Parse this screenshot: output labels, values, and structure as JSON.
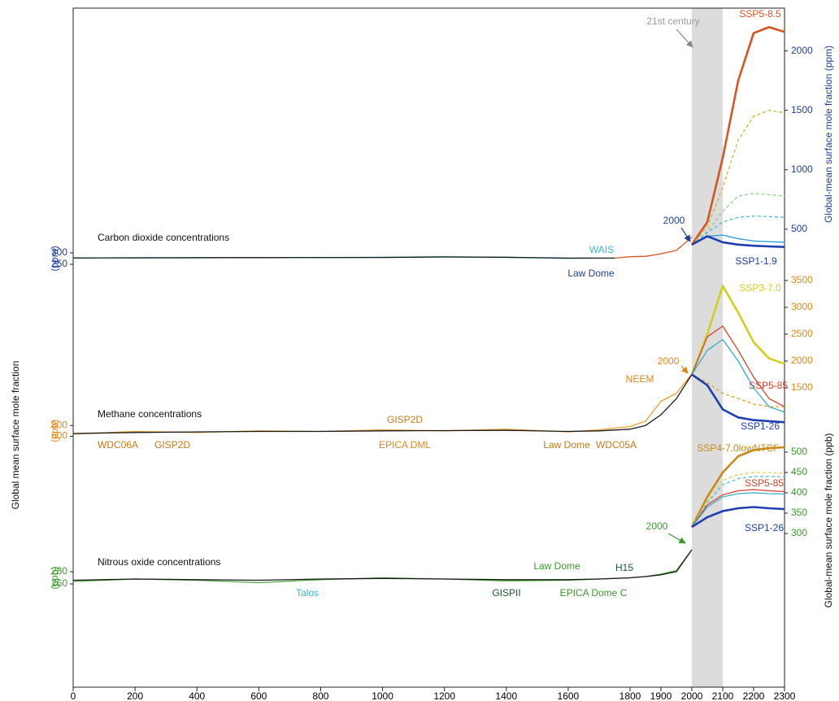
{
  "chart_data": [
    {
      "type": "line",
      "title": "Carbon dioxide concentrations",
      "yunit": "(ppm)",
      "y2label": "Global-mean surface mole fraction (ppm)",
      "axis_color": "#1f3f99",
      "ylim": [
        232,
        1375
      ],
      "yticks": [
        250,
        300
      ],
      "y2lim": [
        170,
        2360
      ],
      "y2ticks": [
        500,
        1000,
        1500,
        2000
      ],
      "highlight": {
        "range": [
          2000,
          2100
        ],
        "label": "21st century",
        "color": "#dcdcdc"
      },
      "annotations": [
        {
          "text": "WAIS",
          "color": "#35b8d6"
        },
        {
          "text": "Law Dome",
          "color": "#1f3f99"
        },
        {
          "text": "2000",
          "color": "#1f3f99"
        }
      ],
      "series": [
        {
          "color": "#35b8d6",
          "x": [
            0,
            200,
            400,
            600,
            800,
            1000,
            1200,
            1400,
            1600,
            1700
          ],
          "values": [
            277,
            279,
            278,
            280,
            279,
            281,
            283,
            280,
            276,
            277
          ]
        },
        {
          "color": "#1a1a1a",
          "x": [
            0,
            200,
            400,
            600,
            800,
            1000,
            1200,
            1400,
            1600,
            1750
          ],
          "values": [
            278,
            278,
            279,
            279,
            280,
            280,
            282,
            281,
            277,
            277
          ]
        },
        {
          "color": "#d9531e",
          "x": [
            1750,
            1800,
            1850,
            1900,
            1950,
            2000
          ],
          "values": [
            277,
            283,
            285,
            296,
            311,
            369
          ]
        },
        {
          "name": "SSP5-8.5",
          "color": "#d9531e",
          "bold": true,
          "axis": "y2",
          "x": [
            2000,
            2050,
            2100,
            2150,
            2200,
            2250,
            2300
          ],
          "values": [
            369,
            560,
            1100,
            1750,
            2150,
            2200,
            2160
          ]
        },
        {
          "color": "#c9b531",
          "dash": true,
          "axis": "y2",
          "x": [
            2000,
            2050,
            2100,
            2150,
            2200,
            2250,
            2300
          ],
          "values": [
            369,
            520,
            850,
            1250,
            1450,
            1500,
            1480
          ]
        },
        {
          "color": "#8fcf8f",
          "dash": true,
          "axis": "y2",
          "x": [
            2000,
            2050,
            2100,
            2150,
            2200,
            2250,
            2300
          ],
          "values": [
            369,
            480,
            650,
            780,
            800,
            790,
            780
          ]
        },
        {
          "color": "#4fb9d3",
          "dash": true,
          "axis": "y2",
          "x": [
            2000,
            2050,
            2100,
            2150,
            2200,
            2250,
            2300
          ],
          "values": [
            369,
            470,
            560,
            600,
            610,
            605,
            600
          ]
        },
        {
          "color": "#1f9ad6",
          "axis": "y2",
          "x": [
            2000,
            2050,
            2100,
            2150,
            2200,
            2250,
            2300
          ],
          "values": [
            369,
            440,
            450,
            420,
            400,
            395,
            390
          ]
        },
        {
          "name": "SSP1-1.9",
          "color": "#1d3fb0",
          "bold": true,
          "axis": "y2",
          "x": [
            2000,
            2050,
            2100,
            2150,
            2200,
            2250,
            2300
          ],
          "values": [
            369,
            440,
            390,
            370,
            360,
            355,
            350
          ]
        }
      ]
    },
    {
      "type": "line",
      "title": "Methane concentrations",
      "yunit": "(ppb)",
      "ylabel": "Global mean surface mole fraction",
      "axis_color": "#e0881a",
      "ylim": [
        470,
        3650
      ],
      "yticks": [
        600,
        800
      ],
      "y2lim": [
        470,
        3650
      ],
      "y2ticks": [
        1500,
        2000,
        2500,
        3000,
        3500
      ],
      "annotations": [
        {
          "text": "2000",
          "color": "#e0881a"
        },
        {
          "text": "NEEM",
          "color": "#e0881a"
        },
        {
          "text": "GISP2D",
          "color": "#c87a18"
        },
        {
          "text": "WDC06A",
          "color": "#c87a18"
        },
        {
          "text": "GISP2D",
          "color": "#c87a18"
        },
        {
          "text": "EPICA DML",
          "color": "#e0881a"
        },
        {
          "text": "Law Dome",
          "color": "#c87a18"
        },
        {
          "text": "WDC05A",
          "color": "#c87a18"
        }
      ],
      "series": [
        {
          "color": "#e8a030",
          "x": [
            0,
            200,
            400,
            600,
            800,
            1000,
            1200,
            1400,
            1600,
            1700,
            1800,
            1850,
            1900,
            1950,
            2000
          ],
          "values": [
            640,
            690,
            670,
            700,
            690,
            720,
            700,
            730,
            680,
            720,
            780,
            880,
            1250,
            1400,
            1760
          ]
        },
        {
          "color": "#1a1a1a",
          "x": [
            0,
            200,
            400,
            600,
            800,
            1000,
            1200,
            1400,
            1600,
            1700,
            1800,
            1850,
            1900,
            1950,
            2000
          ],
          "values": [
            650,
            670,
            680,
            690,
            690,
            700,
            705,
            710,
            690,
            700,
            730,
            800,
            1000,
            1300,
            1750
          ]
        },
        {
          "name": "SSP3-7.0",
          "color": "#cfcf1e",
          "bold": true,
          "axis": "y2",
          "x": [
            2000,
            2050,
            2100,
            2150,
            2200,
            2250,
            2300
          ],
          "values": [
            1750,
            2500,
            3400,
            2900,
            2350,
            2050,
            1950
          ]
        },
        {
          "name": "SSP5-85",
          "color": "#d9402a",
          "axis": "y2",
          "x": [
            2000,
            2050,
            2100,
            2150,
            2200,
            2250,
            2300
          ],
          "values": [
            1750,
            2450,
            2650,
            2200,
            1700,
            1300,
            1150
          ]
        },
        {
          "color": "#2fb0c8",
          "axis": "y2",
          "x": [
            2000,
            2050,
            2100,
            2150,
            2200,
            2250,
            2300
          ],
          "values": [
            1750,
            2200,
            2400,
            2000,
            1500,
            1150,
            1050
          ]
        },
        {
          "color": "#e0a030",
          "dash": true,
          "axis": "y2",
          "x": [
            2000,
            2050,
            2100,
            2150,
            2200,
            2250,
            2300
          ],
          "values": [
            1750,
            1600,
            1400,
            1300,
            1200,
            1150,
            1150
          ]
        },
        {
          "name": "SSP1-26",
          "color": "#1d3fb0",
          "bold": true,
          "axis": "y2",
          "x": [
            2000,
            2050,
            2100,
            2150,
            2200,
            2250,
            2300
          ],
          "values": [
            1750,
            1550,
            1100,
            950,
            900,
            880,
            860
          ]
        }
      ]
    },
    {
      "type": "line",
      "title": "Nitrous oxide concentrations",
      "yunit": "(ppb)",
      "y2label": "Global-mean surface mole fraction (ppb)",
      "axis_color": "#3a9a2a",
      "ylim": [
        204,
        484
      ],
      "yticks": [
        260,
        280
      ],
      "y2lim": [
        92,
        512
      ],
      "y2ticks": [
        300,
        350,
        400,
        450,
        500
      ],
      "xlim": [
        0,
        2300
      ],
      "xticks": [
        0,
        200,
        400,
        600,
        800,
        1000,
        1200,
        1400,
        1600,
        1800,
        1900,
        2000,
        2100,
        2200,
        2300
      ],
      "annotations": [
        {
          "text": "2000",
          "color": "#3a9a2a"
        },
        {
          "text": "Law Dome",
          "color": "#3a9a2a"
        },
        {
          "text": "H15",
          "color": "#1a5a2a"
        },
        {
          "text": "Talos",
          "color": "#35b8d6"
        },
        {
          "text": "GISPII",
          "color": "#1a5a2a"
        },
        {
          "text": "EPICA Dome C",
          "color": "#3a9a2a"
        }
      ],
      "series": [
        {
          "color": "#4aa83a",
          "x": [
            0,
            200,
            400,
            600,
            800,
            1000,
            1200,
            1400,
            1600,
            1700,
            1800,
            1850,
            1900,
            1950,
            2000
          ],
          "values": [
            264,
            268,
            266,
            262,
            267,
            270,
            268,
            265,
            266,
            268,
            270,
            272,
            276,
            282,
            316
          ]
        },
        {
          "color": "#1a1a1a",
          "x": [
            0,
            200,
            400,
            600,
            800,
            1000,
            1200,
            1400,
            1600,
            1700,
            1800,
            1850,
            1900,
            1950,
            2000
          ],
          "values": [
            266,
            268,
            267,
            266,
            268,
            269,
            268,
            267,
            267,
            268,
            270,
            272,
            275,
            280,
            316
          ]
        },
        {
          "name": "SSP4-7.0lowNTCF",
          "color": "#c98a18",
          "bold": true,
          "axis": "y2",
          "x": [
            2000,
            2050,
            2100,
            2150,
            2200,
            2250,
            2300
          ],
          "values": [
            316,
            390,
            450,
            490,
            505,
            510,
            512
          ]
        },
        {
          "color": "#e3cf5a",
          "dash": true,
          "axis": "y2",
          "x": [
            2000,
            2050,
            2100,
            2150,
            2200,
            2250,
            2300
          ],
          "values": [
            316,
            380,
            430,
            445,
            450,
            450,
            448
          ]
        },
        {
          "color": "#4fc0d8",
          "dash": true,
          "axis": "y2",
          "x": [
            2000,
            2050,
            2100,
            2150,
            2200,
            2250,
            2300
          ],
          "values": [
            316,
            375,
            420,
            435,
            440,
            440,
            440
          ]
        },
        {
          "name": "SSP5-85",
          "color": "#d9402a",
          "axis": "y2",
          "x": [
            2000,
            2050,
            2100,
            2150,
            2200,
            2250,
            2300
          ],
          "values": [
            316,
            370,
            395,
            405,
            408,
            405,
            403
          ]
        },
        {
          "color": "#2fb0c8",
          "axis": "y2",
          "x": [
            2000,
            2050,
            2100,
            2150,
            2200,
            2250,
            2300
          ],
          "values": [
            316,
            365,
            390,
            398,
            400,
            398,
            397
          ]
        },
        {
          "name": "SSP1-26",
          "color": "#1d3fb0",
          "bold": true,
          "axis": "y2",
          "x": [
            2000,
            2050,
            2100,
            2150,
            2200,
            2250,
            2300
          ],
          "values": [
            316,
            340,
            355,
            362,
            365,
            362,
            360
          ]
        }
      ]
    }
  ]
}
